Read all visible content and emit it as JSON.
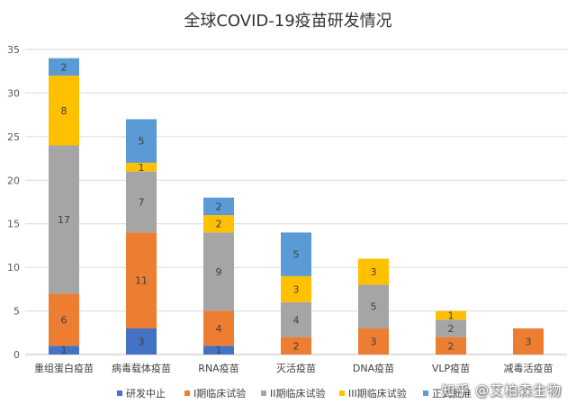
{
  "chart_data": {
    "type": "bar",
    "stacked": true,
    "title": "全球COVID-19疫苗研发情况",
    "categories": [
      "重组蛋白疫苗",
      "病毒载体疫苗",
      "RNA疫苗",
      "灭活疫苗",
      "DNA疫苗",
      "VLP疫苗",
      "减毒活疫苗"
    ],
    "series": [
      {
        "name": "研发中止",
        "color": "#4472C4",
        "values": [
          1,
          3,
          1,
          0,
          0,
          0,
          0
        ]
      },
      {
        "name": "I期临床试验",
        "color": "#ED7D31",
        "values": [
          6,
          11,
          4,
          2,
          3,
          2,
          3
        ]
      },
      {
        "name": "II期临床试验",
        "color": "#A5A5A5",
        "values": [
          17,
          7,
          9,
          4,
          5,
          2,
          0
        ]
      },
      {
        "name": "III期临床试验",
        "color": "#FFC000",
        "values": [
          8,
          1,
          2,
          3,
          3,
          1,
          0
        ]
      },
      {
        "name": "正式批准",
        "color": "#5B9BD5",
        "values": [
          2,
          5,
          2,
          5,
          0,
          0,
          0
        ]
      }
    ],
    "ylim": [
      0,
      35
    ],
    "yticks": [
      0,
      5,
      10,
      15,
      20,
      25,
      30,
      35
    ],
    "grid": true,
    "legend_position": "bottom",
    "data_labels": true
  },
  "watermark": "知乎 @艾柏森生物"
}
